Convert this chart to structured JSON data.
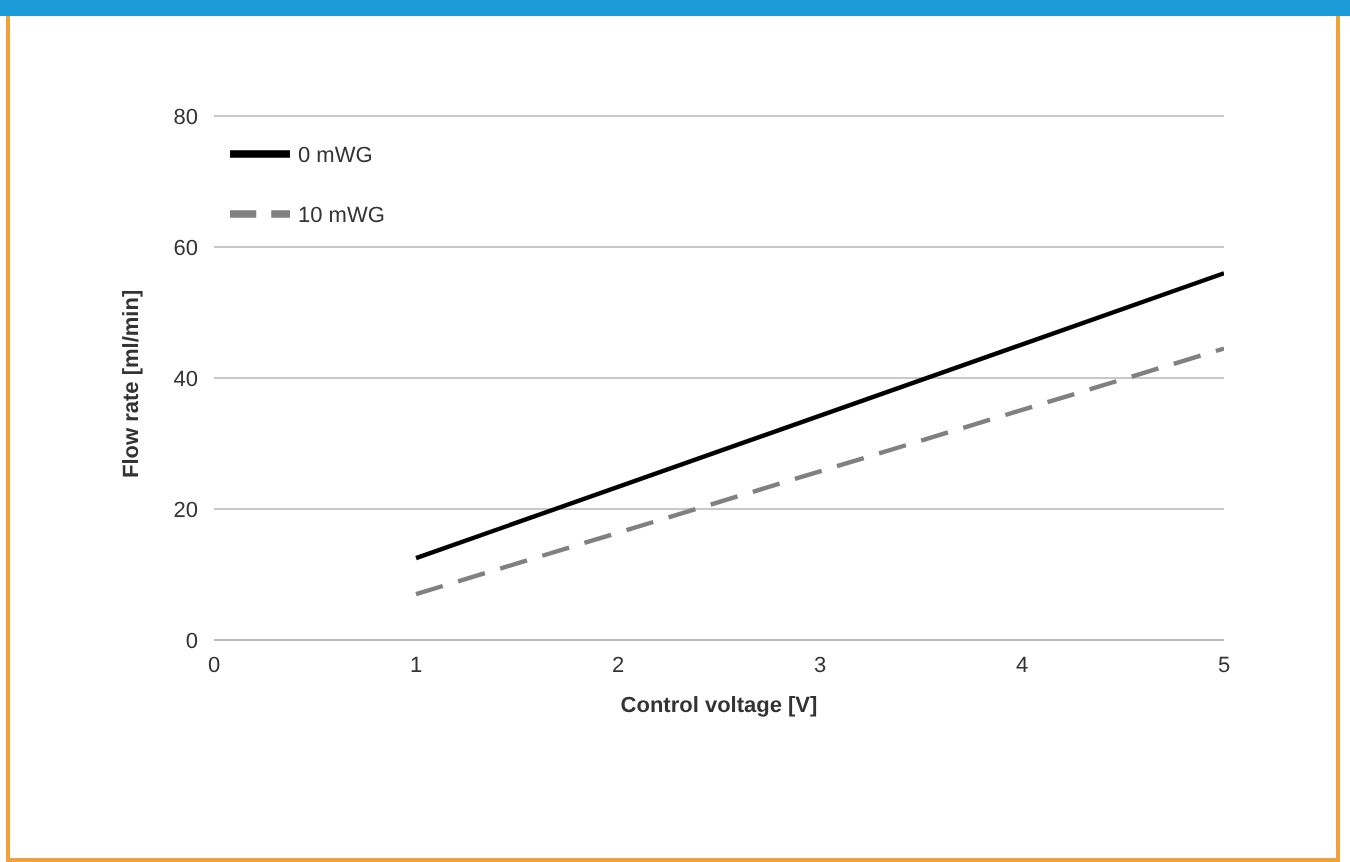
{
  "chart_data": {
    "type": "line",
    "xlabel": "Control voltage [V]",
    "ylabel": "Flow rate [ml/min]",
    "x": [
      1,
      5
    ],
    "series": [
      {
        "name": "0 mWG",
        "color": "#000000",
        "values": [
          12.5,
          56
        ],
        "line_style": "solid"
      },
      {
        "name": "10 mWG",
        "color": "#808080",
        "values": [
          7,
          44.5
        ],
        "line_style": "dashed"
      }
    ],
    "xlim": [
      0,
      5
    ],
    "xticks": [
      0,
      1,
      2,
      3,
      4,
      5
    ],
    "ylim": [
      0,
      80
    ],
    "yticks": [
      0,
      20,
      40,
      60,
      80
    ],
    "grid": "y",
    "legend": "top left",
    "marker": "none"
  }
}
